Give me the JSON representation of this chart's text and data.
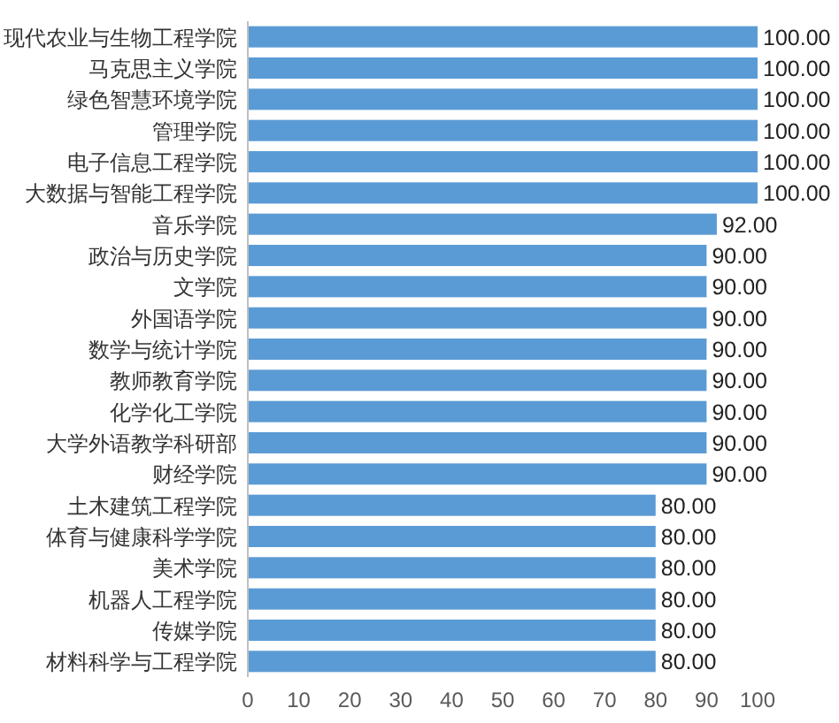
{
  "chart_data": {
    "type": "bar",
    "orientation": "horizontal",
    "categories": [
      "现代农业与生物工程学院",
      "马克思主义学院",
      "绿色智慧环境学院",
      "管理学院",
      "电子信息工程学院",
      "大数据与智能工程学院",
      "音乐学院",
      "政治与历史学院",
      "文学院",
      "外国语学院",
      "数学与统计学院",
      "教师教育学院",
      "化学化工学院",
      "大学外语教学科研部",
      "财经学院",
      "土木建筑工程学院",
      "体育与健康科学学院",
      "美术学院",
      "机器人工程学院",
      "传媒学院",
      "材料科学与工程学院"
    ],
    "values": [
      100,
      100,
      100,
      100,
      100,
      100,
      92,
      90,
      90,
      90,
      90,
      90,
      90,
      90,
      90,
      80,
      80,
      80,
      80,
      80,
      80
    ],
    "value_labels": [
      "100.00",
      "100.00",
      "100.00",
      "100.00",
      "100.00",
      "100.00",
      "92.00",
      "90.00",
      "90.00",
      "90.00",
      "90.00",
      "90.00",
      "90.00",
      "90.00",
      "90.00",
      "80.00",
      "80.00",
      "80.00",
      "80.00",
      "80.00",
      "80.00"
    ],
    "color": "#5b9bd5",
    "xlim": [
      0,
      100
    ],
    "xticks": [
      0,
      10,
      20,
      30,
      40,
      50,
      60,
      70,
      80,
      90,
      100
    ],
    "grid": false
  }
}
